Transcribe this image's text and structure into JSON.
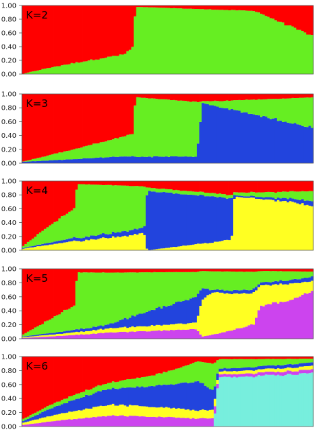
{
  "colors": {
    "red": "#ff0000",
    "green": "#66ee22",
    "blue": "#2244dd",
    "yellow": "#ffff22",
    "purple": "#cc44ee",
    "cyan": "#77eedd"
  },
  "chart_data": [
    {
      "type": "bar",
      "stacked": true,
      "title": "K=2",
      "k": 2,
      "ylim": [
        0,
        1
      ],
      "yticks": [
        "0.00",
        "0.20",
        "0.40",
        "0.60",
        "0.80",
        "1.00"
      ],
      "individuals": 120,
      "components": [
        {
          "color": "red",
          "proportion_profile": [
            [
              0,
              1.0
            ],
            [
              0.25,
              0.97
            ],
            [
              0.35,
              0.93
            ],
            [
              0.38,
              0.6
            ],
            [
              0.39,
              0.02
            ],
            [
              0.8,
              0.08
            ],
            [
              1.0,
              0.45
            ]
          ]
        },
        {
          "color": "green",
          "proportion_profile": [
            [
              0,
              0.0
            ],
            [
              0.38,
              0.4
            ],
            [
              0.39,
              0.98
            ],
            [
              0.8,
              0.92
            ],
            [
              1.0,
              0.55
            ]
          ]
        }
      ]
    },
    {
      "type": "bar",
      "stacked": true,
      "title": "K=3",
      "k": 3,
      "ylim": [
        0,
        1
      ],
      "yticks": [
        "0.00",
        "0.20",
        "0.40",
        "0.60",
        "0.80",
        "1.00"
      ],
      "individuals": 120,
      "components": [
        {
          "color": "red",
          "proportion_profile": [
            [
              0,
              0.98
            ],
            [
              0.38,
              0.55
            ],
            [
              0.39,
              0.05
            ],
            [
              0.6,
              0.12
            ],
            [
              1.0,
              0.05
            ]
          ]
        },
        {
          "color": "green",
          "proportion_profile": [
            [
              0,
              0.0
            ],
            [
              0.38,
              0.3
            ],
            [
              0.39,
              0.95
            ],
            [
              0.6,
              0.8
            ],
            [
              0.62,
              0.03
            ],
            [
              1.0,
              0.45
            ]
          ]
        },
        {
          "color": "blue",
          "proportion_profile": [
            [
              0,
              0.02
            ],
            [
              0.38,
              0.1
            ],
            [
              0.6,
              0.1
            ],
            [
              0.62,
              0.95
            ],
            [
              1.0,
              0.5
            ]
          ]
        }
      ]
    },
    {
      "type": "bar",
      "stacked": true,
      "title": "K=4",
      "k": 4,
      "ylim": [
        0,
        1
      ],
      "yticks": [
        "0.00",
        "0.20",
        "0.40",
        "0.60",
        "0.80",
        "1.00"
      ],
      "individuals": 120,
      "components": [
        {
          "color": "red",
          "proportion_profile": [
            [
              0,
              0.95
            ],
            [
              0.18,
              0.4
            ],
            [
              0.19,
              0.05
            ],
            [
              0.45,
              0.1
            ],
            [
              0.72,
              0.2
            ],
            [
              1.0,
              0.1
            ]
          ]
        },
        {
          "color": "green",
          "proportion_profile": [
            [
              0,
              0.02
            ],
            [
              0.18,
              0.45
            ],
            [
              0.19,
              0.9
            ],
            [
              0.42,
              0.75
            ],
            [
              0.43,
              0.05
            ],
            [
              0.72,
              0.05
            ],
            [
              1.0,
              0.1
            ]
          ]
        },
        {
          "color": "blue",
          "proportion_profile": [
            [
              0,
              0.01
            ],
            [
              0.42,
              0.1
            ],
            [
              0.43,
              0.85
            ],
            [
              0.72,
              0.6
            ],
            [
              0.73,
              0.02
            ],
            [
              1.0,
              0.05
            ]
          ]
        },
        {
          "color": "yellow",
          "proportion_profile": [
            [
              0,
              0.02
            ],
            [
              0.42,
              0.3
            ],
            [
              0.43,
              0.0
            ],
            [
              0.72,
              0.15
            ],
            [
              0.73,
              0.9
            ],
            [
              1.0,
              0.45
            ]
          ]
        }
      ]
    },
    {
      "type": "bar",
      "stacked": true,
      "title": "K=5",
      "k": 5,
      "ylim": [
        0,
        1
      ],
      "yticks": [
        "0.00",
        "0.20",
        "0.40",
        "0.60",
        "0.80",
        "1.00"
      ],
      "individuals": 120,
      "components": [
        {
          "color": "red",
          "proportion_profile": [
            [
              0,
              0.95
            ],
            [
              0.18,
              0.5
            ],
            [
              0.19,
              0.05
            ],
            [
              0.6,
              0.05
            ],
            [
              1.0,
              0.03
            ]
          ]
        },
        {
          "color": "green",
          "proportion_profile": [
            [
              0,
              0.02
            ],
            [
              0.18,
              0.35
            ],
            [
              0.19,
              0.8
            ],
            [
              0.6,
              0.4
            ],
            [
              1.0,
              0.05
            ]
          ]
        },
        {
          "color": "blue",
          "proportion_profile": [
            [
              0,
              0.01
            ],
            [
              0.3,
              0.05
            ],
            [
              0.6,
              0.4
            ],
            [
              0.65,
              0.05
            ],
            [
              1.0,
              0.05
            ]
          ]
        },
        {
          "color": "yellow",
          "proportion_profile": [
            [
              0,
              0.01
            ],
            [
              0.6,
              0.1
            ],
            [
              0.62,
              0.85
            ],
            [
              0.8,
              0.4
            ],
            [
              1.0,
              0.1
            ]
          ]
        },
        {
          "color": "purple",
          "proportion_profile": [
            [
              0,
              0.01
            ],
            [
              0.6,
              0.15
            ],
            [
              0.62,
              0.05
            ],
            [
              0.8,
              0.2
            ],
            [
              0.82,
              0.6
            ],
            [
              1.0,
              0.5
            ]
          ]
        }
      ]
    },
    {
      "type": "bar",
      "stacked": true,
      "title": "K=6",
      "k": 6,
      "ylim": [
        0,
        1
      ],
      "yticks": [
        "0.00",
        "0.20",
        "0.40",
        "0.60",
        "0.80",
        "1.00"
      ],
      "individuals": 120,
      "components": [
        {
          "color": "red",
          "proportion_profile": [
            [
              0,
              0.9
            ],
            [
              0.6,
              0.05
            ],
            [
              1.0,
              0.03
            ]
          ]
        },
        {
          "color": "green",
          "proportion_profile": [
            [
              0,
              0.03
            ],
            [
              0.6,
              0.2
            ],
            [
              1.0,
              0.05
            ]
          ]
        },
        {
          "color": "blue",
          "proportion_profile": [
            [
              0,
              0.02
            ],
            [
              0.3,
              0.3
            ],
            [
              0.6,
              0.3
            ],
            [
              0.68,
              0.05
            ],
            [
              1.0,
              0.05
            ]
          ]
        },
        {
          "color": "yellow",
          "proportion_profile": [
            [
              0,
              0.03
            ],
            [
              0.3,
              0.2
            ],
            [
              0.68,
              0.05
            ],
            [
              1.0,
              0.05
            ]
          ]
        },
        {
          "color": "purple",
          "proportion_profile": [
            [
              0,
              0.02
            ],
            [
              0.3,
              0.2
            ],
            [
              0.68,
              0.05
            ],
            [
              1.0,
              0.05
            ]
          ]
        },
        {
          "color": "cyan",
          "proportion_profile": [
            [
              0,
              0.0
            ],
            [
              0.66,
              0.0
            ],
            [
              0.68,
              0.85
            ],
            [
              1.0,
              0.75
            ]
          ]
        }
      ]
    }
  ]
}
